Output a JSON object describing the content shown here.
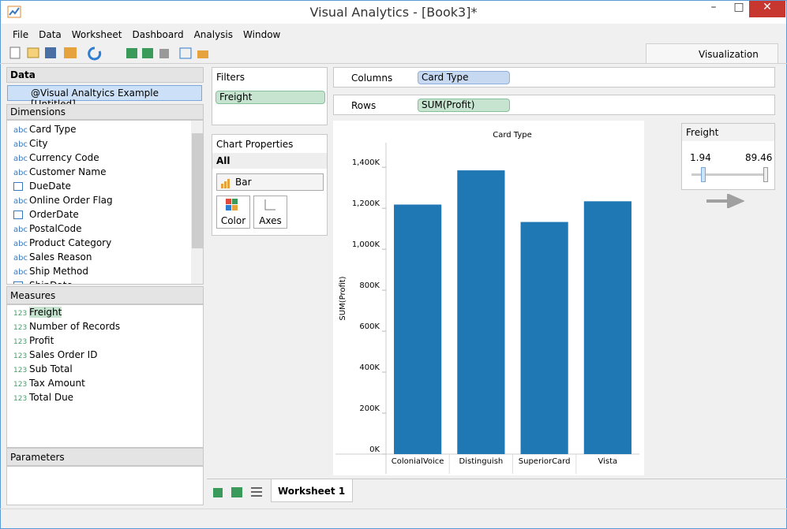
{
  "window": {
    "title": "Visual Analytics - [Book3]*"
  },
  "menu": [
    "File",
    "Data",
    "Worksheet",
    "Dashboard",
    "Analysis",
    "Window"
  ],
  "tab": "Visualization",
  "data_panel": {
    "title": "Data",
    "source": "@Visual Analtyics Example [Untitled]"
  },
  "dimensions": {
    "title": "Dimensions",
    "items": [
      {
        "type": "abc",
        "name": "Card Type"
      },
      {
        "type": "abc",
        "name": "City"
      },
      {
        "type": "abc",
        "name": "Currency Code"
      },
      {
        "type": "abc",
        "name": "Customer Name"
      },
      {
        "name": "DueDate"
      },
      {
        "type": "abc",
        "name": "Online Order Flag"
      },
      {
        "name": "OrderDate"
      },
      {
        "type": "abc",
        "name": "PostalCode"
      },
      {
        "type": "abc",
        "name": "Product Category"
      },
      {
        "type": "abc",
        "name": "Sales Reason"
      },
      {
        "type": "abc",
        "name": "Ship Method"
      },
      {
        "name": "ShipDate"
      }
    ]
  },
  "measures": {
    "title": "Measures",
    "items": [
      {
        "type": "123",
        "name": "Freight"
      },
      {
        "type": "123",
        "name": "Number of Records"
      },
      {
        "type": "123",
        "name": "Profit"
      },
      {
        "type": "123",
        "name": "Sales Order ID"
      },
      {
        "type": "123",
        "name": "Sub Total"
      },
      {
        "type": "123",
        "name": "Tax Amount"
      },
      {
        "type": "123",
        "name": "Total Due"
      }
    ]
  },
  "parameters": {
    "title": "Parameters"
  },
  "filters": {
    "title": "Filters",
    "items": [
      "Freight"
    ]
  },
  "chart_properties": {
    "title": "Chart Properties",
    "section": "All",
    "mark_type": "Bar",
    "buttons": [
      "Color",
      "Axes"
    ]
  },
  "shelves": {
    "columns": {
      "label": "Columns",
      "pill": "Card Type"
    },
    "rows": {
      "label": "Rows",
      "pill": "SUM(Profit)"
    }
  },
  "chart_data": {
    "type": "bar",
    "title": "Card Type",
    "y_label": "SUM(Profit)",
    "categories": [
      "ColonialVoice",
      "Distinguish",
      "SuperiorCard",
      "Vista"
    ],
    "values": [
      1218000,
      1385000,
      1133000,
      1234000
    ],
    "color": "#1f77b4",
    "ylim": [
      0,
      1520000
    ],
    "yticks": [
      {
        "value": 0,
        "label": "0K"
      },
      {
        "value": 200000,
        "label": "200K"
      },
      {
        "value": 400000,
        "label": "400K"
      },
      {
        "value": 600000,
        "label": "600K"
      },
      {
        "value": 800000,
        "label": "800K"
      },
      {
        "value": 1000000,
        "label": "1,000K"
      },
      {
        "value": 1200000,
        "label": "1,200K"
      },
      {
        "value": 1400000,
        "label": "1,400K"
      }
    ]
  },
  "freight_filter": {
    "title": "Freight",
    "min": 1.94,
    "max": 89.46
  },
  "sheet_tab": "Worksheet 1"
}
